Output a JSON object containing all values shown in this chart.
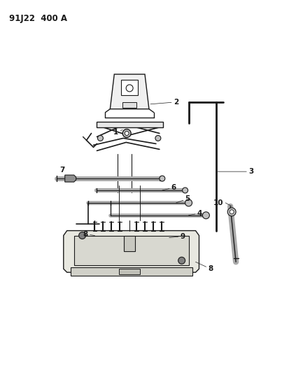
{
  "title_code": "91J22  400 A",
  "background_color": "#ffffff",
  "line_color": "#1a1a1a",
  "label_color": "#1a1a1a",
  "figsize": [
    4.14,
    5.33
  ],
  "dpi": 100,
  "title_fontsize": 8.5,
  "label_fontsize": 7.5
}
